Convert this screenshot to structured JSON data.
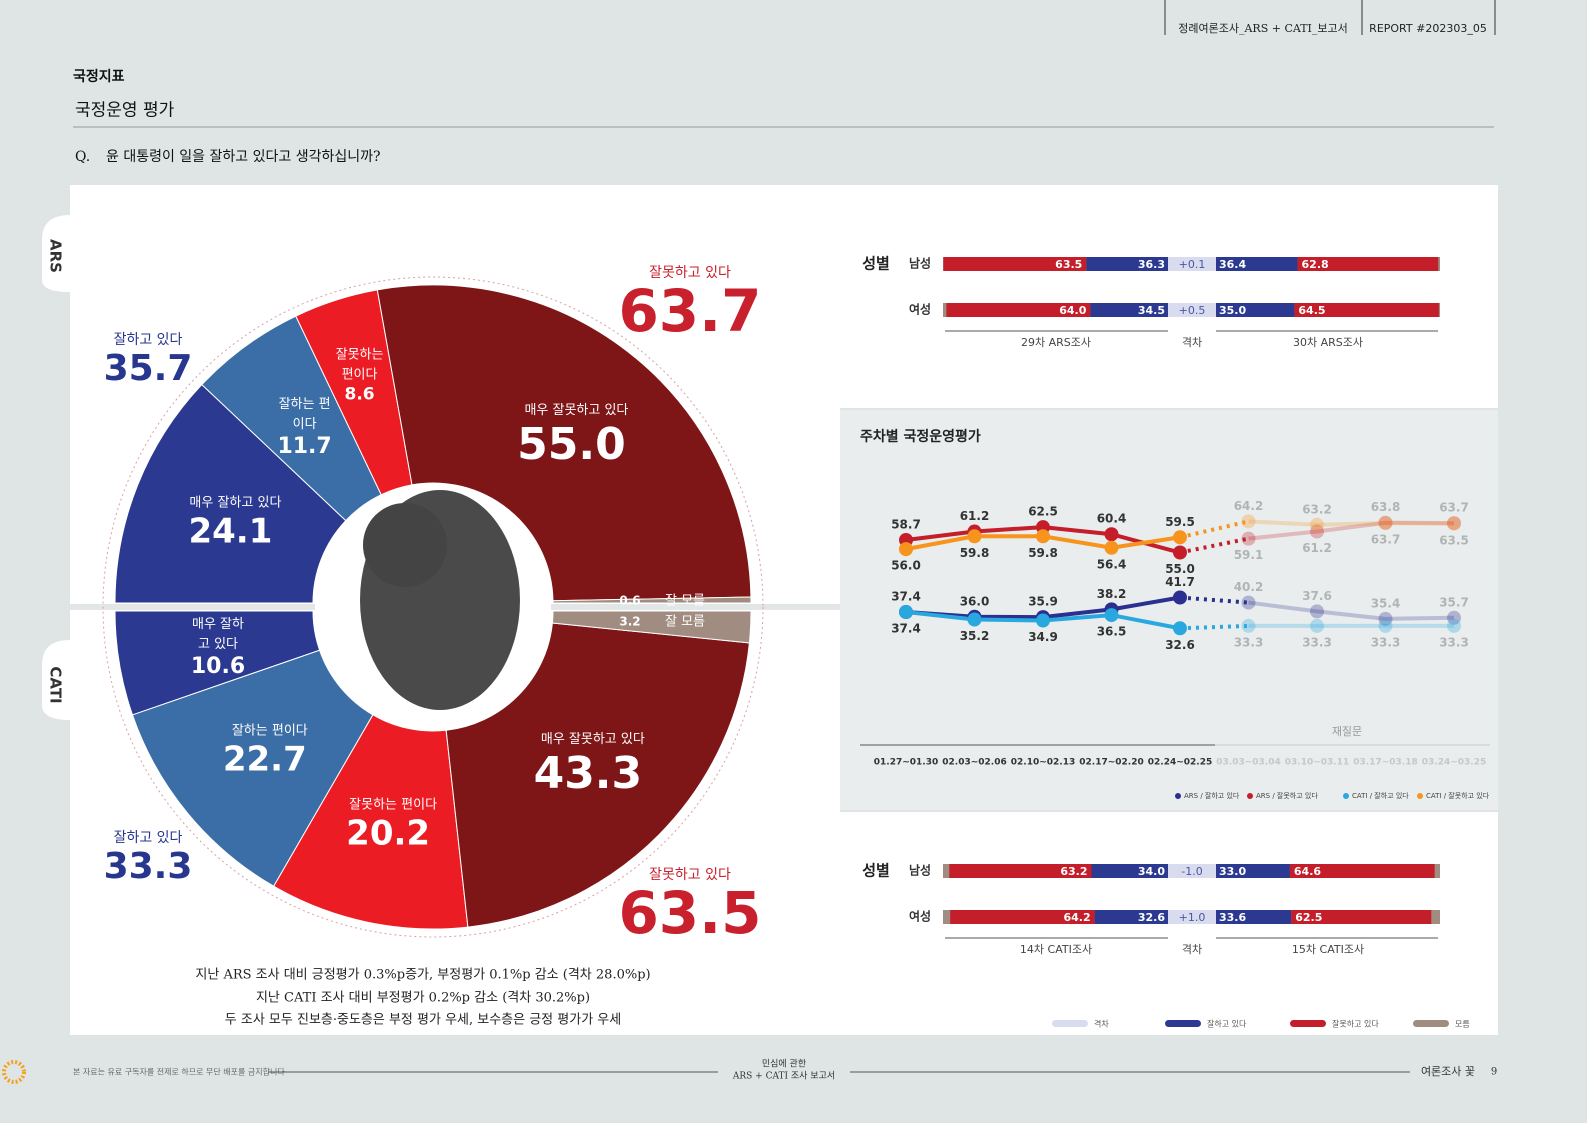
{
  "header": {
    "report": "정례여론조사_ARS + CATI_보고서",
    "report_no": "REPORT #202303_05"
  },
  "section": "국정지표",
  "title": "국정운영 평가",
  "question_marker": "Q.",
  "question": "윤 대통령이 일을 잘하고 있다고 생각하십니까?",
  "tabs": [
    "ARS",
    "CATI"
  ],
  "chart_data": [
    {
      "type": "half-donut",
      "half": "top",
      "categories": [
        "매우 잘하고 있다",
        "잘하는 편이다",
        "잘못하는 편이다",
        "매우 잘못하고 있다",
        "잘 모름"
      ],
      "values": [
        24.1,
        11.7,
        8.6,
        55.0,
        0.6
      ],
      "value_labels": [
        "24.1",
        "11.7",
        "8.6",
        "55.0",
        "0.6"
      ],
      "colors": [
        "#2b3990",
        "#3b6ea6",
        "#ec1c24",
        "#7e1517",
        "#a08c80"
      ],
      "totals": [
        {
          "label": "잘하고 있다",
          "value": 35.7,
          "color": "#27368e"
        },
        {
          "label": "잘못하고 있다",
          "value": 63.7,
          "color": "#c8202c"
        }
      ]
    },
    {
      "type": "half-donut",
      "half": "bottom",
      "categories": [
        "매우 잘하고 있다",
        "잘하는 편이다",
        "잘못하는 편이다",
        "매우 잘못하고 있다",
        "잘 모름"
      ],
      "values": [
        10.6,
        22.7,
        20.2,
        43.3,
        3.2
      ],
      "value_labels": [
        "10.6",
        "22.7",
        "20.2",
        "43.3",
        "3.2"
      ],
      "colors": [
        "#2b3990",
        "#3b6ea6",
        "#ec1c24",
        "#7e1517",
        "#a08c80"
      ],
      "totals": [
        {
          "label": "잘하고 있다",
          "value": 33.3,
          "color": "#27368e"
        },
        {
          "label": "잘못하고 있다",
          "value": 63.5,
          "color": "#c8202c"
        }
      ]
    },
    {
      "type": "gender-bar",
      "title": "성별",
      "categories": [
        "남성",
        "여성"
      ],
      "prev": {
        "label": "29차 ARS조사",
        "negative": {
          "values": [
            63.5,
            64.0
          ],
          "value_labels": [
            "63.5",
            "64.0"
          ]
        },
        "positive": {
          "values": [
            36.3,
            34.5
          ],
          "value_labels": [
            "36.3",
            "34.5"
          ]
        }
      },
      "gap": {
        "label": "격차",
        "values": [
          0.1,
          0.5
        ],
        "value_labels": [
          "+0.1",
          "+0.5"
        ]
      },
      "curr": {
        "label": "30차 ARS조사",
        "positive": {
          "values": [
            36.4,
            35.0
          ],
          "value_labels": [
            "36.4",
            "35.0"
          ]
        },
        "negative": {
          "values": [
            62.8,
            64.5
          ],
          "value_labels": [
            "62.8",
            "64.5"
          ]
        }
      }
    },
    {
      "type": "line",
      "title": "주차별 국정운영평가",
      "categories": [
        "01.27~01.30",
        "02.03~02.06",
        "02.10~02.13",
        "02.17~02.20",
        "02.24~02.25",
        "03.03~03.04",
        "03.10~03.11",
        "03.17~03.18",
        "03.24~03.25"
      ],
      "faded_from": 5,
      "annotation": "재질문",
      "ylim": [
        25,
        72
      ],
      "series": [
        {
          "name": "ARS / 잘하고 있다",
          "color": "#2b2f8f",
          "values": [
            37.4,
            36.0,
            35.9,
            38.2,
            41.7,
            40.2,
            37.6,
            35.4,
            35.7
          ],
          "value_labels": [
            "37.4",
            "36.0",
            "35.9",
            "38.2",
            "41.7",
            "40.2",
            "37.6",
            "35.4",
            "35.7"
          ]
        },
        {
          "name": "ARS / 잘못하고 있다",
          "color": "#c41e2a",
          "values": [
            58.7,
            61.2,
            62.5,
            60.4,
            55.0,
            59.1,
            61.2,
            63.8,
            63.7
          ],
          "value_labels": [
            "58.7",
            "61.2",
            "62.5",
            "60.4",
            "55.0",
            "59.1",
            "61.2",
            "63.8",
            "63.7"
          ]
        },
        {
          "name": "CATI / 잘하고 있다",
          "color": "#29a8e0",
          "values": [
            37.4,
            35.2,
            34.9,
            36.5,
            32.6,
            33.3,
            33.3,
            33.3,
            33.3
          ],
          "value_labels": [
            "37.4",
            "35.2",
            "34.9",
            "36.5",
            "32.6",
            "33.3",
            "33.3",
            "33.3",
            "33.3"
          ]
        },
        {
          "name": "CATI / 잘못하고 있다",
          "color": "#f7941d",
          "values": [
            56.0,
            59.8,
            59.8,
            56.4,
            59.5,
            64.2,
            63.2,
            63.7,
            63.5
          ],
          "value_labels": [
            "56.0",
            "59.8",
            "59.8",
            "56.4",
            "59.5",
            "64.2",
            "63.2",
            "63.7",
            "63.5"
          ]
        }
      ]
    },
    {
      "type": "gender-bar",
      "title": "성별",
      "categories": [
        "남성",
        "여성"
      ],
      "prev": {
        "label": "14차 CATI조사",
        "negative": {
          "values": [
            63.2,
            64.2
          ],
          "value_labels": [
            "63.2",
            "64.2"
          ]
        },
        "positive": {
          "values": [
            34.0,
            32.6
          ],
          "value_labels": [
            "34.0",
            "32.6"
          ]
        }
      },
      "gap": {
        "label": "격차",
        "values": [
          -1.0,
          1.0
        ],
        "value_labels": [
          "-1.0",
          "+1.0"
        ]
      },
      "curr": {
        "label": "15차 CATI조사",
        "positive": {
          "values": [
            33.0,
            33.6
          ],
          "value_labels": [
            "33.0",
            "33.6"
          ]
        },
        "negative": {
          "values": [
            64.6,
            62.5
          ],
          "value_labels": [
            "64.6",
            "62.5"
          ]
        }
      }
    }
  ],
  "bar_legend": [
    {
      "name": "격차",
      "color": "#d9dcee"
    },
    {
      "name": "잘하고 있다",
      "color": "#2b3990"
    },
    {
      "name": "잘못하고 있다",
      "color": "#c41e2a"
    },
    {
      "name": "모름",
      "color": "#a08c80"
    }
  ],
  "notes": [
    "지난 ARS 조사 대비 긍정평가 0.3%p증가, 부정평가 0.1%p 감소 (격차 28.0%p)",
    "지난 CATI 조사 대비 부정평가 0.2%p 감소 (격차 30.2%p)",
    "두 조사 모두 진보층·중도층은 부정 평가 우세, 보수층은 긍정 평가가 우세"
  ],
  "footer": {
    "notice": "본 자료는 유료 구독자를 전제로 하므로 무단 배포를 금지합니다",
    "center": [
      "민심에 관한",
      "ARS + CATI 조사 보고서"
    ],
    "brand": "여론조사 꽃",
    "page": "9"
  }
}
